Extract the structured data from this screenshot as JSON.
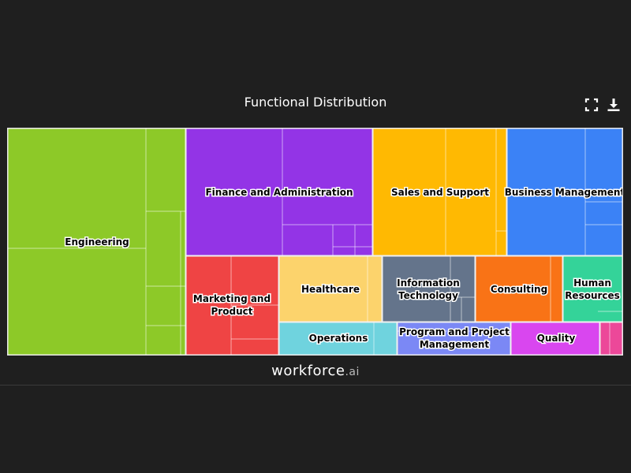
{
  "header": {
    "title": "Functional Distribution",
    "expand_icon": "expand-icon",
    "download_icon": "download-icon"
  },
  "footer": {
    "brand": "workforce",
    "brand_suffix": ".ai"
  },
  "chart_data": {
    "type": "treemap",
    "title": "Functional Distribution",
    "series": [
      {
        "name": "Engineering",
        "color": "#8dc928"
      },
      {
        "name": "Finance and Administration",
        "color": "#9334e6"
      },
      {
        "name": "Sales and Support",
        "color": "#ffb902"
      },
      {
        "name": "Business Management",
        "color": "#3b82f6"
      },
      {
        "name": "Marketing and Product",
        "color": "#ef4444"
      },
      {
        "name": "Healthcare",
        "color": "#fcd36c"
      },
      {
        "name": "Information Technology",
        "color": "#64748b"
      },
      {
        "name": "Consulting",
        "color": "#f97316"
      },
      {
        "name": "Human Resources",
        "color": "#34d399"
      },
      {
        "name": "Operations",
        "color": "#6fd3de"
      },
      {
        "name": "Program and Project Management",
        "color": "#7b88f5"
      },
      {
        "name": "Quality",
        "color": "#d946ef"
      },
      {
        "name": "",
        "color": "#ec4899"
      }
    ],
    "values": [
      34,
      18,
      11,
      11,
      6,
      5,
      5,
      3,
      2.5,
      2.5,
      2,
      2,
      0.6
    ]
  }
}
